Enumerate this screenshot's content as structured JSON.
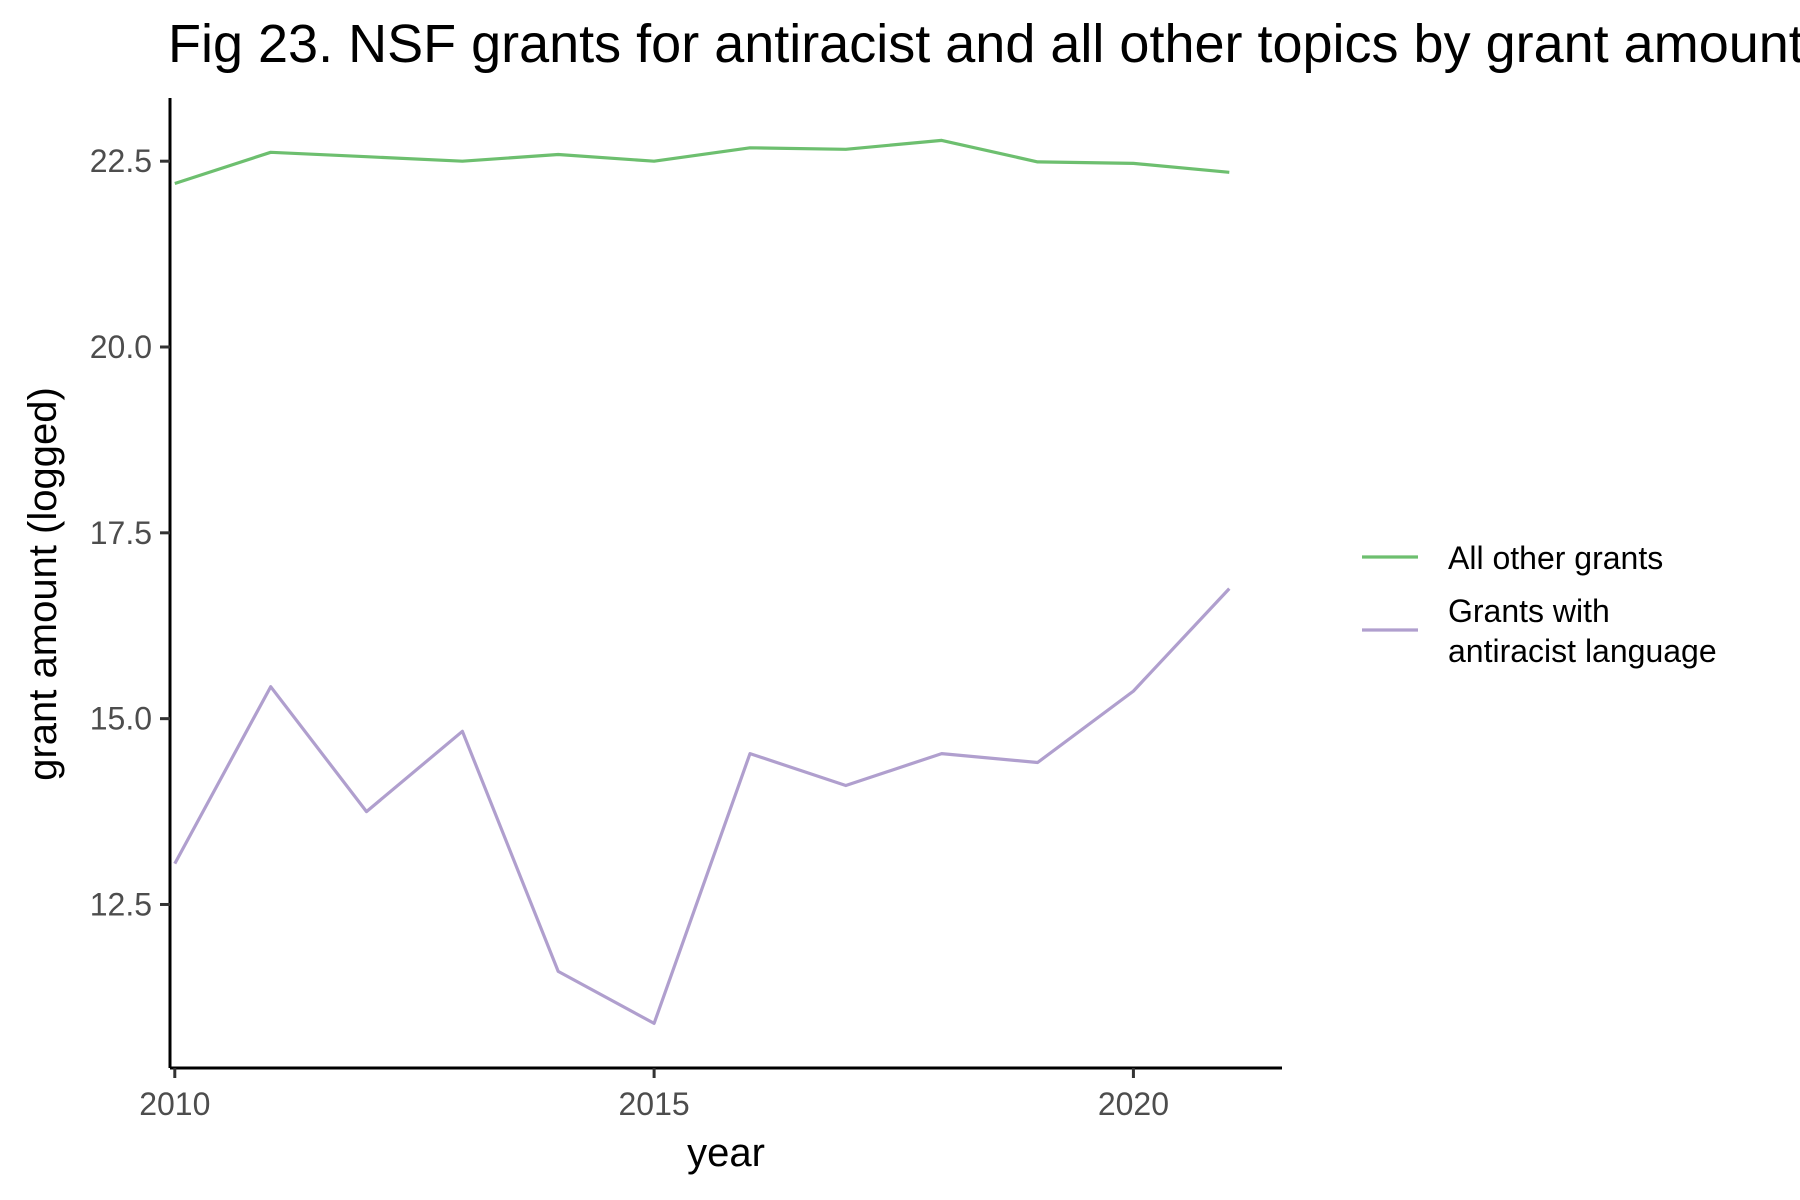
{
  "chart_data": {
    "type": "line",
    "title": "Fig 23. NSF grants for antiracist and all other topics by grant amount",
    "xlabel": "year",
    "ylabel": "grant amount (logged)",
    "x": [
      2010,
      2011,
      2012,
      2013,
      2014,
      2015,
      2016,
      2017,
      2018,
      2019,
      2020,
      2021
    ],
    "xlim": [
      2009.95,
      2021.55
    ],
    "ylim": [
      10.3,
      23.35
    ],
    "x_ticks": [
      2010,
      2015,
      2020
    ],
    "x_tick_labels": [
      "2010",
      "2015",
      "2020"
    ],
    "y_ticks": [
      12.5,
      15.0,
      17.5,
      20.0,
      22.5
    ],
    "y_tick_labels": [
      "12.5",
      "15.0",
      "17.5",
      "20.0",
      "22.5"
    ],
    "grid": false,
    "legend_position": "right",
    "series": [
      {
        "name": "All other grants",
        "color": "#6dbf6f",
        "values": [
          22.2,
          22.62,
          22.56,
          22.5,
          22.59,
          22.5,
          22.68,
          22.66,
          22.78,
          22.49,
          22.47,
          22.35
        ]
      },
      {
        "name": "Grants with antiracist language",
        "legend_lines": [
          "Grants with",
          "antiracist language"
        ],
        "color": "#b09fce",
        "values": [
          13.05,
          15.43,
          13.75,
          14.83,
          11.6,
          10.9,
          14.53,
          14.1,
          14.53,
          14.41,
          15.37,
          16.75
        ]
      }
    ]
  }
}
